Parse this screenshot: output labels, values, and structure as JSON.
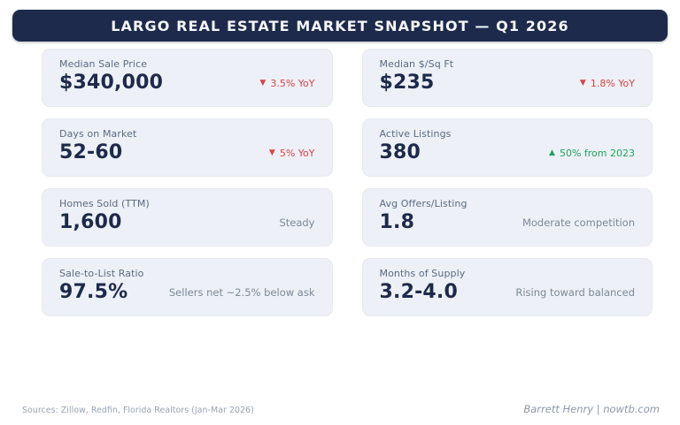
{
  "header": {
    "title": "LARGO REAL ESTATE MARKET SNAPSHOT — Q1 2026"
  },
  "cards": [
    {
      "label": "Median Sale Price",
      "value": "$340,000",
      "note": {
        "icon": "▼",
        "text": "3.5% YoY",
        "type": "down"
      }
    },
    {
      "label": "Median $/Sq Ft",
      "value": "$235",
      "note": {
        "icon": "▼",
        "text": "1.8% YoY",
        "type": "down"
      }
    },
    {
      "label": "Days on Market",
      "value": "52-60",
      "note": {
        "icon": "▼",
        "text": "5% YoY",
        "type": "down"
      }
    },
    {
      "label": "Active Listings",
      "value": "380",
      "note": {
        "icon": "▲",
        "text": "50% from 2023",
        "type": "up"
      }
    },
    {
      "label": "Homes Sold (TTM)",
      "value": "1,600",
      "note": {
        "icon": "",
        "text": "Steady",
        "type": "neutral"
      }
    },
    {
      "label": "Avg Offers/Listing",
      "value": "1.8",
      "note": {
        "icon": "",
        "text": "Moderate competition",
        "type": "neutral"
      }
    },
    {
      "label": "Sale-to-List Ratio",
      "value": "97.5%",
      "note": {
        "icon": "",
        "text": "Sellers net ~2.5% below ask",
        "type": "neutral"
      }
    },
    {
      "label": "Months of Supply",
      "value": "3.2-4.0",
      "note": {
        "icon": "",
        "text": "Rising toward balanced",
        "type": "neutral"
      }
    }
  ],
  "footer": {
    "sources": "Sources: Zillow, Redfin, Florida Realtors (Jan-Mar 2026)",
    "attribution": "Barrett Henry | nowtb.com"
  },
  "colors": {
    "banner_bg": "#1d2a4b",
    "card_bg": "#edf0f6",
    "value_text": "#1d2a4b",
    "label_text": "#5a6a84",
    "trend_down": "#d64545",
    "trend_up": "#21a35e",
    "neutral_note": "#7d8899"
  }
}
